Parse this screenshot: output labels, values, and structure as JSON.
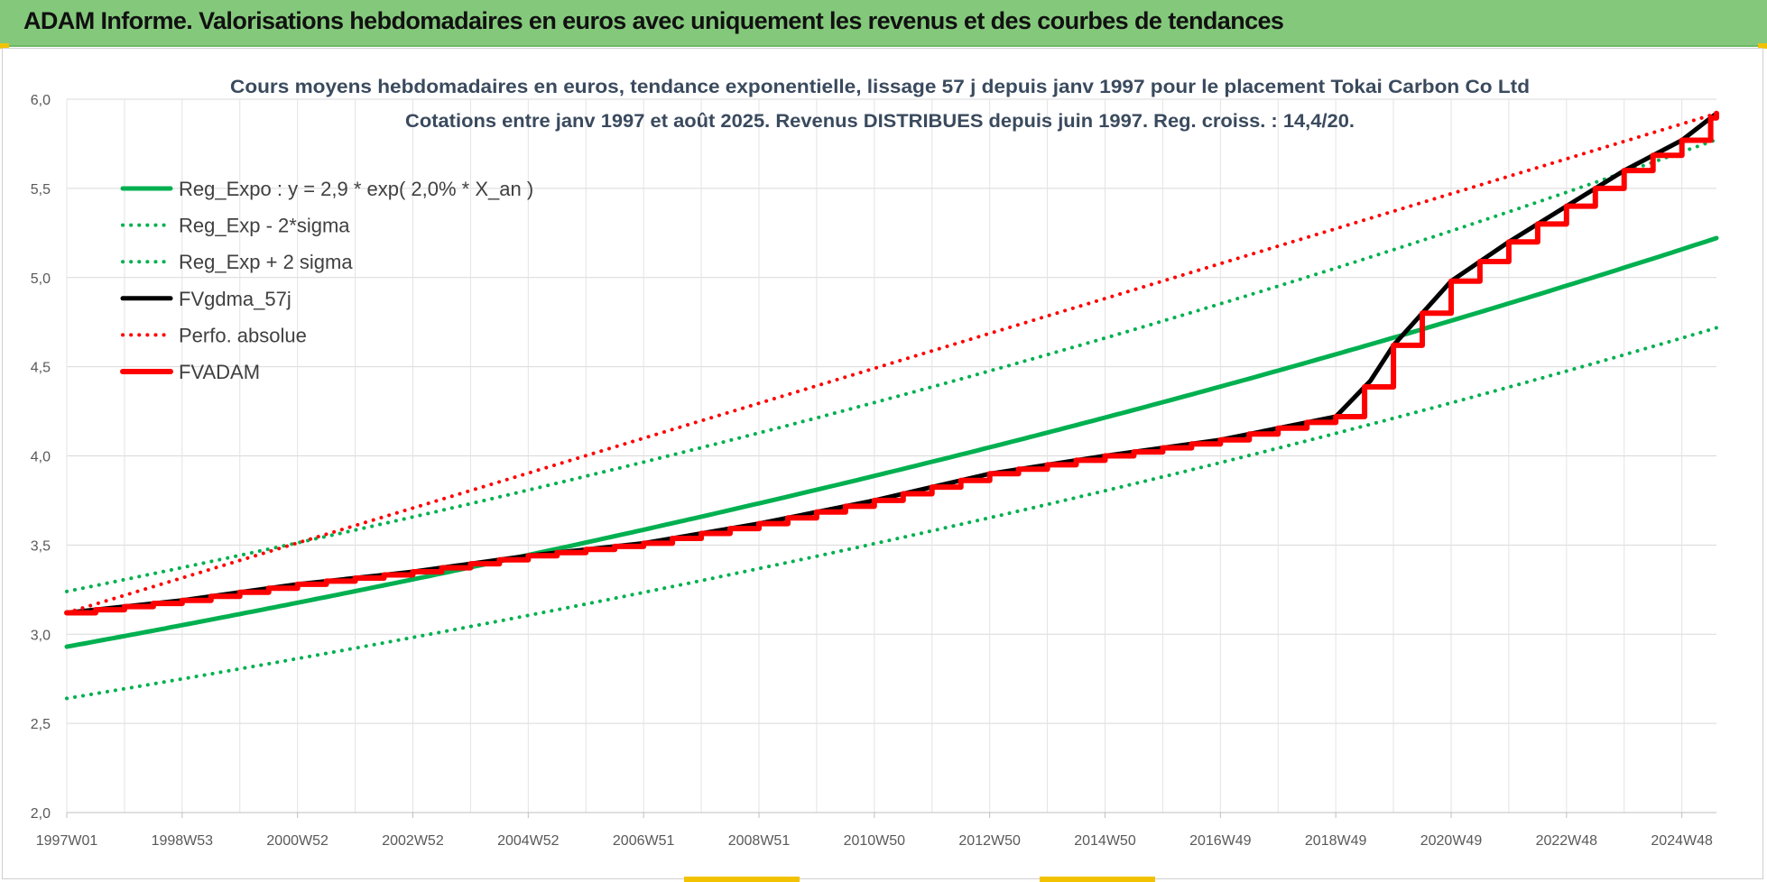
{
  "header": {
    "title": "ADAM Informe. Valorisations hebdomadaires en euros avec uniquement les revenus et des courbes de tendances"
  },
  "colors": {
    "header_band": "#84c97b",
    "trend_green": "#00b050",
    "black": "#000000",
    "red": "#ff0000",
    "grid": "#d9d9d9"
  },
  "chart_data": {
    "type": "line",
    "title_lines": [
      "Cours moyens hebdomadaires en euros, tendance exponentielle, lissage 57 j depuis janv 1997  pour le placement Tokai Carbon Co Ltd",
      "Cotations entre janv 1997 et août 2025.  Revenus DISTRIBUES depuis juin 1997.  Reg. croiss. : 14,4/20."
    ],
    "xlabel": "",
    "ylabel": "",
    "x_range_years": [
      1997.0,
      2025.6
    ],
    "ylim": [
      2.0,
      6.0
    ],
    "y_ticks": [
      "2,0",
      "2,5",
      "3,0",
      "3,5",
      "4,0",
      "4,5",
      "5,0",
      "5,5",
      "6,0"
    ],
    "x_ticks": [
      {
        "label": "1997W01",
        "year": 1997.0
      },
      {
        "label": "1998W53",
        "year": 1999.0
      },
      {
        "label": "2000W52",
        "year": 2001.0
      },
      {
        "label": "2002W52",
        "year": 2003.0
      },
      {
        "label": "2004W52",
        "year": 2005.0
      },
      {
        "label": "2006W51",
        "year": 2007.0
      },
      {
        "label": "2008W51",
        "year": 2009.0
      },
      {
        "label": "2010W50",
        "year": 2011.0
      },
      {
        "label": "2012W50",
        "year": 2013.0
      },
      {
        "label": "2014W50",
        "year": 2015.0
      },
      {
        "label": "2016W49",
        "year": 2017.0
      },
      {
        "label": "2018W49",
        "year": 2019.0
      },
      {
        "label": "2020W49",
        "year": 2021.0
      },
      {
        "label": "2022W48",
        "year": 2023.0
      },
      {
        "label": "2024W48",
        "year": 2025.0
      }
    ],
    "grid": true,
    "legend_position": "top-left",
    "series": [
      {
        "name": "Reg_Expo : y = 2,9 * exp( 2,0% *  X_an )",
        "color": "#00b050",
        "style": "solid",
        "x": [
          1997.0,
          2025.6
        ],
        "model": {
          "a": 2.93,
          "b": 0.0202
        }
      },
      {
        "name": "Reg_Exp - 2*sigma",
        "color": "#00b050",
        "style": "dotted",
        "x": [
          1997.0,
          2025.6
        ],
        "model": {
          "a": 2.64,
          "b": 0.0203
        }
      },
      {
        "name": "Reg_Exp + 2 sigma",
        "color": "#00b050",
        "style": "dotted",
        "x": [
          1997.0,
          2025.6
        ],
        "model": {
          "a": 3.24,
          "b": 0.0202
        }
      },
      {
        "name": "FVgdma_57j",
        "color": "#000000",
        "style": "solid",
        "x": [
          1997.0,
          1999.0,
          2001.0,
          2003.0,
          2005.0,
          2007.0,
          2009.0,
          2011.0,
          2013.0,
          2015.0,
          2017.0,
          2019.0,
          2019.6,
          2020.0,
          2021.0,
          2022.0,
          2023.0,
          2024.0,
          2025.0,
          2025.6
        ],
        "y": [
          3.12,
          3.19,
          3.28,
          3.35,
          3.44,
          3.51,
          3.62,
          3.75,
          3.9,
          4.0,
          4.09,
          4.22,
          4.42,
          4.62,
          4.98,
          5.2,
          5.4,
          5.6,
          5.77,
          5.92
        ]
      },
      {
        "name": "Perfo. absolue",
        "color": "#ff0000",
        "style": "dotted",
        "x": [
          1997.0,
          2025.6
        ],
        "y": [
          3.12,
          5.92
        ]
      },
      {
        "name": "FVADAM",
        "color": "#ff0000",
        "style": "solid-thick",
        "x": [
          1997.0,
          1999.0,
          2001.0,
          2003.0,
          2005.0,
          2007.0,
          2009.0,
          2011.0,
          2013.0,
          2015.0,
          2017.0,
          2019.0,
          2019.6,
          2020.0,
          2021.0,
          2022.0,
          2023.0,
          2024.0,
          2025.0,
          2025.6
        ],
        "y": [
          3.12,
          3.19,
          3.28,
          3.35,
          3.44,
          3.51,
          3.62,
          3.75,
          3.9,
          4.0,
          4.09,
          4.22,
          4.42,
          4.62,
          4.98,
          5.2,
          5.4,
          5.6,
          5.77,
          5.92
        ],
        "step_every_years": 0.5
      }
    ]
  }
}
